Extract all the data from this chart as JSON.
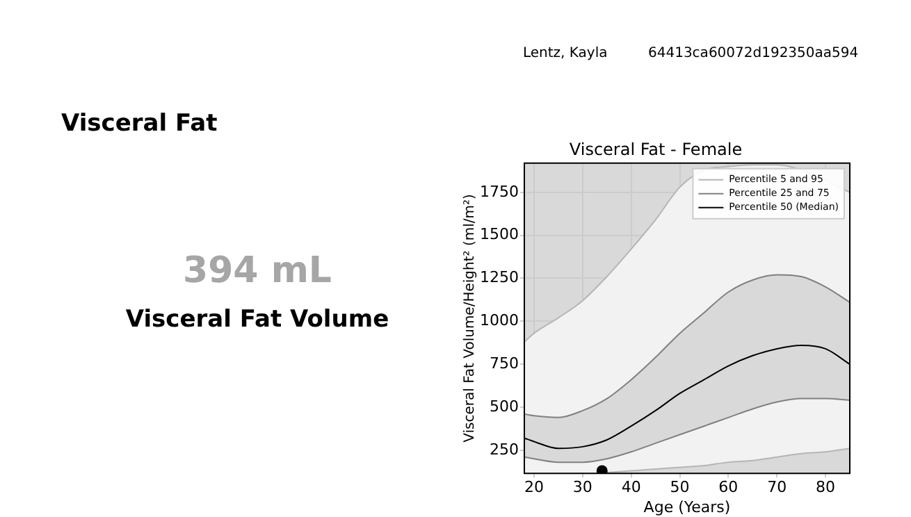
{
  "chart_data": {
    "type": "line",
    "title": "Visceral Fat - Female",
    "xlabel": "Age (Years)",
    "ylabel": "Visceral Fat Volume/Height² (ml/m²)",
    "annotations": [
      "Lentz, Kayla",
      "64413ca60072d192350aa594",
      "Visceral Fat",
      "394 mL",
      "Visceral Fat Volume"
    ],
    "x": [
      18,
      20,
      25,
      30,
      35,
      40,
      45,
      50,
      55,
      60,
      65,
      70,
      75,
      80,
      85
    ],
    "series": [
      {
        "name": "Percentile 5 and 95",
        "type": "area",
        "color": "#b5b5b5",
        "values": [
          880,
          930,
          1020,
          1120,
          1260,
          1420,
          1590,
          1780,
          1880,
          1900,
          1910,
          1910,
          1880,
          null,
          1750
        ]
      },
      {
        "color": "#b5b5b5",
        "values": [
          null,
          null,
          null,
          null,
          120,
          130,
          140,
          150,
          160,
          180,
          190,
          210,
          230,
          240,
          260
        ]
      },
      {
        "name": "Percentile 25 and 75",
        "color": "#808080",
        "values": [
          460,
          450,
          440,
          480,
          550,
          660,
          790,
          930,
          1050,
          1170,
          1240,
          1270,
          1260,
          1200,
          1110
        ]
      },
      {
        "color": "#808080",
        "values": [
          210,
          200,
          180,
          180,
          200,
          240,
          290,
          340,
          390,
          440,
          490,
          530,
          550,
          550,
          540
        ]
      },
      {
        "name": "Percentile 50 (Median)",
        "color": "#000000",
        "values": [
          320,
          300,
          260,
          270,
          310,
          390,
          480,
          580,
          660,
          740,
          800,
          840,
          860,
          840,
          750
        ],
        "lower": [
          210,
          200,
          180,
          180,
          200,
          240,
          290,
          340,
          390,
          440,
          490,
          530,
          550,
          550,
          540
        ],
        "upper": [
          460,
          450,
          440,
          480,
          550,
          660,
          790,
          930,
          1050,
          1170,
          1240,
          1270,
          1260,
          1200,
          1110
        ]
      },
      {
        "type": "scatter",
        "color": "#000000",
        "marker": "circle",
        "x": [
          34
        ],
        "values": [
          130
        ]
      }
    ],
    "xlim": [
      18,
      85
    ],
    "xticks": [
      20,
      30,
      40,
      50,
      60,
      70,
      80
    ],
    "ylim": [
      115,
      1920
    ],
    "yticks": [
      250,
      500,
      750,
      1000,
      1250,
      1500,
      1750
    ],
    "grid": true,
    "legend": "top right",
    "marker": "none",
    "line_style": "solid"
  }
}
